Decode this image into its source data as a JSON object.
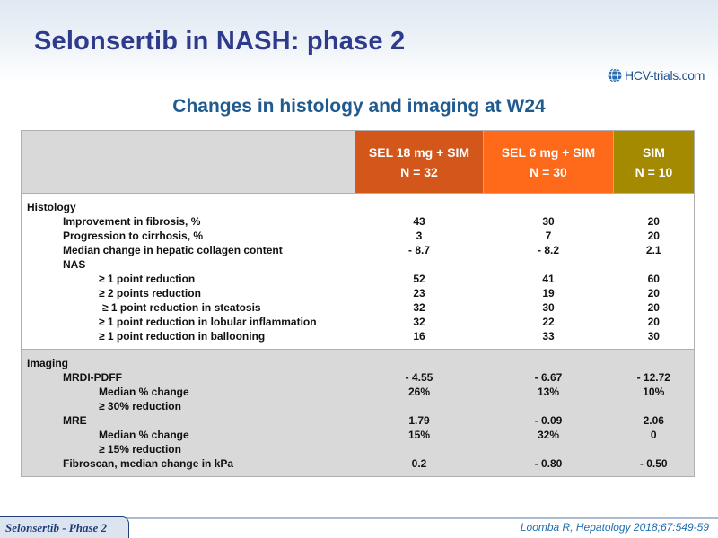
{
  "header": {
    "title": "Selonsertib in NASH: phase 2",
    "logo_text": "HCV-trials.com",
    "subtitle": "Changes in histology and imaging at W24"
  },
  "table": {
    "columns": [
      {
        "line1": "SEL 18 mg + SIM",
        "line2": "N = 32"
      },
      {
        "line1": "SEL 6 mg + SIM",
        "line2": "N = 30"
      },
      {
        "line1": "SIM",
        "line2": "N = 10"
      }
    ],
    "histology": {
      "rows": [
        {
          "label": "Histology",
          "v": [
            "",
            "",
            ""
          ]
        },
        {
          "label": "Improvement in fibrosis, %",
          "v": [
            "43",
            "30",
            "20"
          ]
        },
        {
          "label": "Progression to cirrhosis, %",
          "v": [
            "3",
            "7",
            "20"
          ]
        },
        {
          "label": "Median change in hepatic collagen content",
          "v": [
            "- 8.7",
            "- 8.2",
            "2.1"
          ]
        },
        {
          "label": "NAS",
          "v": [
            "",
            "",
            ""
          ]
        },
        {
          "label": "≥ 1 point reduction",
          "v": [
            "52",
            "41",
            "60"
          ]
        },
        {
          "label": "≥ 2 points reduction",
          "v": [
            "23",
            "19",
            "20"
          ]
        },
        {
          "label": "≥ 1 point reduction in steatosis",
          "v": [
            "32",
            "30",
            "20"
          ]
        },
        {
          "label": "≥ 1 point reduction in lobular inflammation",
          "v": [
            "32",
            "22",
            "20"
          ]
        },
        {
          "label": "≥ 1 point reduction in ballooning",
          "v": [
            "16",
            "33",
            "30"
          ]
        }
      ]
    },
    "imaging": {
      "rows": [
        {
          "label": "Imaging",
          "v": [
            "",
            "",
            ""
          ]
        },
        {
          "label": "MRDI-PDFF",
          "v": [
            "- 4.55",
            "- 6.67",
            "- 12.72"
          ]
        },
        {
          "label": "Median % change",
          "v": [
            "26%",
            "13%",
            "10%"
          ]
        },
        {
          "label": "≥ 30% reduction",
          "v": [
            "",
            "",
            ""
          ]
        },
        {
          "label": "MRE",
          "v": [
            "1.79",
            "- 0.09",
            "2.06"
          ]
        },
        {
          "label": "Median % change",
          "v": [
            "15%",
            "32%",
            "0"
          ]
        },
        {
          "label": "≥ 15% reduction",
          "v": [
            "",
            "",
            ""
          ]
        },
        {
          "label": "Fibroscan, median change in kPa",
          "v": [
            "0.2",
            "- 0.80",
            "- 0.50"
          ]
        }
      ]
    }
  },
  "footer": {
    "tag": "Selonsertib - Phase 2",
    "reference": "Loomba R, Hepatology 2018;67:549-59"
  },
  "colors": {
    "title": "#2e3a8c",
    "subtitle": "#1f5b8f",
    "col1": "#d3561b",
    "col2": "#ff6a1a",
    "col3": "#a38a00",
    "imaging_bg": "#d9d9d9"
  }
}
